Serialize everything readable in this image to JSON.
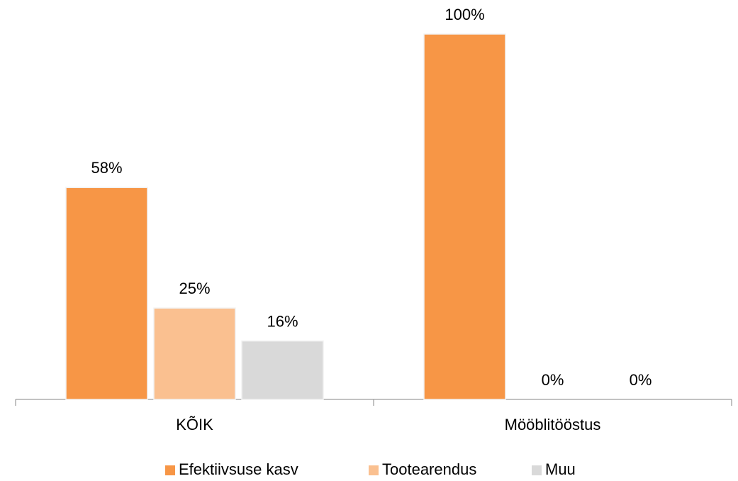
{
  "chart_data": {
    "type": "bar",
    "categories": [
      "KÕIK",
      "Mööblitööstus"
    ],
    "series": [
      {
        "name": "Efektiivsuse kasv",
        "color": "#f79646",
        "values": [
          58,
          100
        ],
        "value_labels": [
          "58%",
          "100%"
        ]
      },
      {
        "name": "Tootearendus",
        "color": "#fac090",
        "values": [
          25,
          0
        ],
        "value_labels": [
          "25%",
          "0%"
        ]
      },
      {
        "name": "Muu",
        "color": "#d9d9d9",
        "values": [
          16,
          0
        ],
        "value_labels": [
          "16%",
          "0%"
        ]
      }
    ],
    "ylim": [
      0,
      100
    ],
    "legend": "bottom"
  }
}
